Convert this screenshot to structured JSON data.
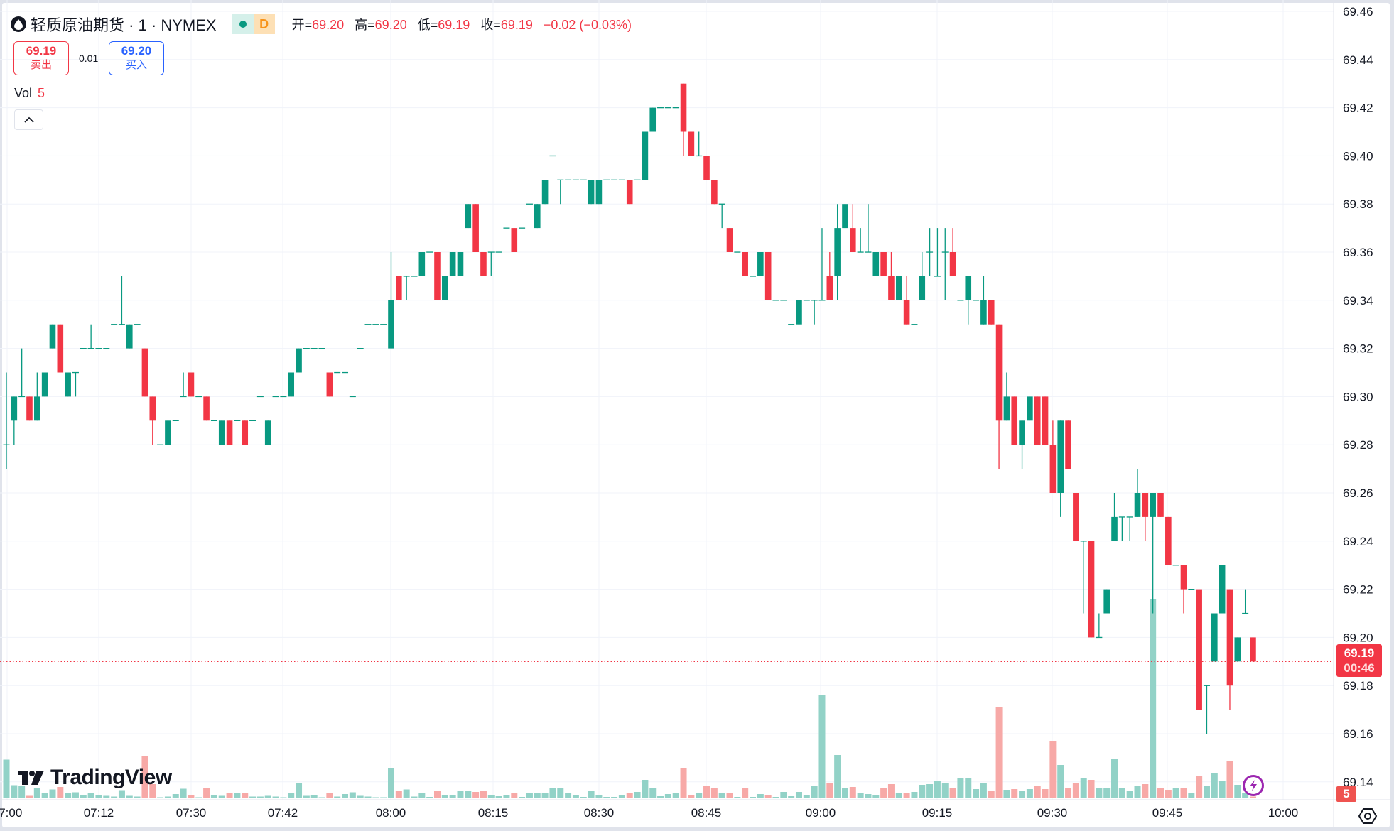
{
  "header": {
    "title": "轻质原油期货 · 1 · NYMEX",
    "status_letter": "D",
    "ohlc": [
      {
        "label": "开=",
        "value": "69.20"
      },
      {
        "label": "高=",
        "value": "69.20"
      },
      {
        "label": "低=",
        "value": "69.19"
      },
      {
        "label": "收=",
        "value": "69.19"
      }
    ],
    "change": "−0.02 (−0.03%)"
  },
  "trade": {
    "sell_price": "69.19",
    "sell_label": "卖出",
    "spread": "0.01",
    "buy_price": "69.20",
    "buy_label": "买入"
  },
  "volume_legend": {
    "label": "Vol",
    "value": "5"
  },
  "branding": {
    "logo_text": "TradingView"
  },
  "colors": {
    "up": "#089981",
    "down": "#f23645",
    "vol_up": "#92d2c7",
    "vol_down": "#f7a9a7",
    "buy": "#2962ff"
  },
  "icons": [
    "droplet-icon",
    "chevron-up-icon",
    "lightning-icon",
    "settings-icon"
  ],
  "chart_data": {
    "type": "candlestick",
    "ylim": [
      69.14,
      69.46
    ],
    "grid": true,
    "y_ticks": [
      "69.46",
      "69.44",
      "69.42",
      "69.40",
      "69.38",
      "69.36",
      "69.34",
      "69.32",
      "69.30",
      "69.28",
      "69.26",
      "69.24",
      "69.22",
      "69.20",
      "69.18",
      "69.16",
      "69.14"
    ],
    "x_ticks": [
      "07:00",
      "07:12",
      "07:30",
      "07:42",
      "08:00",
      "08:15",
      "08:30",
      "08:45",
      "09:00",
      "09:15",
      "09:30",
      "09:45",
      "10:00"
    ],
    "last_price": "69.19",
    "countdown": "00:46",
    "last_volume": "5",
    "ohlc": [
      [
        69.28,
        69.31,
        69.27,
        69.28
      ],
      [
        69.29,
        69.3,
        69.28,
        69.3
      ],
      [
        69.3,
        69.32,
        69.3,
        69.3
      ],
      [
        69.3,
        69.3,
        69.29,
        69.29
      ],
      [
        69.29,
        69.31,
        69.29,
        69.3
      ],
      [
        69.3,
        69.31,
        69.3,
        69.31
      ],
      [
        69.32,
        69.33,
        69.32,
        69.33
      ],
      [
        69.33,
        69.33,
        69.31,
        69.31
      ],
      [
        69.3,
        69.31,
        69.3,
        69.31
      ],
      [
        69.31,
        69.31,
        69.3,
        69.31
      ],
      [
        69.32,
        69.32,
        69.32,
        69.32
      ],
      [
        69.32,
        69.33,
        69.32,
        69.32
      ],
      [
        69.32,
        69.32,
        69.32,
        69.32
      ],
      [
        69.32,
        69.32,
        69.32,
        69.32
      ],
      [
        69.33,
        69.33,
        69.33,
        69.33
      ],
      [
        69.33,
        69.35,
        69.33,
        69.33
      ],
      [
        69.32,
        69.33,
        69.32,
        69.33
      ],
      [
        69.33,
        69.33,
        69.33,
        69.33
      ],
      [
        69.32,
        69.32,
        69.3,
        69.3
      ],
      [
        69.3,
        69.3,
        69.28,
        69.29
      ],
      [
        69.28,
        69.28,
        69.28,
        69.28
      ],
      [
        69.28,
        69.29,
        69.28,
        69.29
      ],
      [
        69.29,
        69.29,
        69.29,
        69.29
      ],
      [
        69.3,
        69.31,
        69.3,
        69.3
      ],
      [
        69.31,
        69.31,
        69.3,
        69.3
      ],
      [
        69.3,
        69.3,
        69.3,
        69.3
      ],
      [
        69.3,
        69.3,
        69.29,
        69.29
      ],
      [
        69.29,
        69.29,
        69.29,
        69.29
      ],
      [
        69.28,
        69.29,
        69.28,
        69.29
      ],
      [
        69.29,
        69.29,
        69.28,
        69.28
      ],
      [
        69.29,
        69.29,
        69.29,
        69.29
      ],
      [
        69.29,
        69.29,
        69.28,
        69.28
      ],
      [
        69.29,
        69.29,
        69.29,
        69.29
      ],
      [
        69.3,
        69.3,
        69.3,
        69.3
      ],
      [
        69.28,
        69.29,
        69.28,
        69.29
      ],
      [
        69.3,
        69.3,
        69.3,
        69.3
      ],
      [
        69.3,
        69.3,
        69.3,
        69.3
      ],
      [
        69.3,
        69.31,
        69.3,
        69.31
      ],
      [
        69.31,
        69.32,
        69.31,
        69.32
      ],
      [
        69.32,
        69.32,
        69.32,
        69.32
      ],
      [
        69.32,
        69.32,
        69.32,
        69.32
      ],
      [
        69.32,
        69.32,
        69.32,
        69.32
      ],
      [
        69.31,
        69.31,
        69.3,
        69.3
      ],
      [
        69.31,
        69.31,
        69.31,
        69.31
      ],
      [
        69.31,
        69.31,
        69.31,
        69.31
      ],
      [
        69.3,
        69.3,
        69.3,
        69.3
      ],
      [
        69.32,
        69.32,
        69.32,
        69.32
      ],
      [
        69.33,
        69.33,
        69.33,
        69.33
      ],
      [
        69.33,
        69.33,
        69.33,
        69.33
      ],
      [
        69.33,
        69.33,
        69.33,
        69.33
      ],
      [
        69.32,
        69.36,
        69.32,
        69.34
      ],
      [
        69.35,
        69.35,
        69.34,
        69.34
      ],
      [
        69.35,
        69.35,
        69.34,
        69.35
      ],
      [
        69.35,
        69.35,
        69.35,
        69.35
      ],
      [
        69.35,
        69.36,
        69.35,
        69.36
      ],
      [
        69.36,
        69.36,
        69.36,
        69.36
      ],
      [
        69.36,
        69.36,
        69.34,
        69.34
      ],
      [
        69.34,
        69.35,
        69.34,
        69.35
      ],
      [
        69.35,
        69.36,
        69.35,
        69.36
      ],
      [
        69.35,
        69.36,
        69.35,
        69.36
      ],
      [
        69.37,
        69.38,
        69.37,
        69.38
      ],
      [
        69.38,
        69.38,
        69.36,
        69.36
      ],
      [
        69.36,
        69.36,
        69.35,
        69.35
      ],
      [
        69.36,
        69.36,
        69.35,
        69.36
      ],
      [
        69.36,
        69.36,
        69.36,
        69.36
      ],
      [
        69.37,
        69.37,
        69.37,
        69.37
      ],
      [
        69.37,
        69.37,
        69.36,
        69.36
      ],
      [
        69.37,
        69.37,
        69.37,
        69.37
      ],
      [
        69.38,
        69.38,
        69.38,
        69.38
      ],
      [
        69.37,
        69.38,
        69.37,
        69.38
      ],
      [
        69.38,
        69.39,
        69.38,
        69.39
      ],
      [
        69.4,
        69.4,
        69.4,
        69.4
      ],
      [
        69.39,
        69.39,
        69.38,
        69.39
      ],
      [
        69.39,
        69.39,
        69.39,
        69.39
      ],
      [
        69.39,
        69.39,
        69.39,
        69.39
      ],
      [
        69.39,
        69.39,
        69.39,
        69.39
      ],
      [
        69.38,
        69.39,
        69.38,
        69.39
      ],
      [
        69.38,
        69.39,
        69.38,
        69.39
      ],
      [
        69.39,
        69.39,
        69.39,
        69.39
      ],
      [
        69.39,
        69.39,
        69.39,
        69.39
      ],
      [
        69.39,
        69.39,
        69.39,
        69.39
      ],
      [
        69.39,
        69.39,
        69.38,
        69.38
      ],
      [
        69.39,
        69.39,
        69.39,
        69.39
      ],
      [
        69.39,
        69.41,
        69.39,
        69.41
      ],
      [
        69.41,
        69.42,
        69.41,
        69.42
      ],
      [
        69.42,
        69.42,
        69.42,
        69.42
      ],
      [
        69.42,
        69.42,
        69.42,
        69.42
      ],
      [
        69.42,
        69.42,
        69.42,
        69.42
      ],
      [
        69.43,
        69.43,
        69.4,
        69.41
      ],
      [
        69.41,
        69.41,
        69.4,
        69.4
      ],
      [
        69.4,
        69.41,
        69.4,
        69.4
      ],
      [
        69.4,
        69.4,
        69.39,
        69.39
      ],
      [
        69.39,
        69.39,
        69.38,
        69.38
      ],
      [
        69.38,
        69.38,
        69.37,
        69.38
      ],
      [
        69.37,
        69.37,
        69.36,
        69.36
      ],
      [
        69.36,
        69.36,
        69.36,
        69.36
      ],
      [
        69.36,
        69.36,
        69.35,
        69.35
      ],
      [
        69.35,
        69.35,
        69.35,
        69.35
      ],
      [
        69.35,
        69.36,
        69.35,
        69.36
      ],
      [
        69.36,
        69.36,
        69.34,
        69.34
      ],
      [
        69.34,
        69.34,
        69.34,
        69.34
      ],
      [
        69.34,
        69.34,
        69.34,
        69.34
      ],
      [
        69.33,
        69.33,
        69.33,
        69.33
      ],
      [
        69.33,
        69.34,
        69.33,
        69.34
      ],
      [
        69.34,
        69.34,
        69.34,
        69.34
      ],
      [
        69.34,
        69.34,
        69.33,
        69.34
      ],
      [
        69.34,
        69.37,
        69.34,
        69.34
      ],
      [
        69.35,
        69.36,
        69.34,
        69.34
      ],
      [
        69.35,
        69.38,
        69.34,
        69.37
      ],
      [
        69.37,
        69.38,
        69.37,
        69.38
      ],
      [
        69.37,
        69.38,
        69.36,
        69.36
      ],
      [
        69.36,
        69.37,
        69.36,
        69.36
      ],
      [
        69.36,
        69.38,
        69.36,
        69.36
      ],
      [
        69.35,
        69.36,
        69.35,
        69.36
      ],
      [
        69.36,
        69.36,
        69.35,
        69.35
      ],
      [
        69.35,
        69.36,
        69.34,
        69.34
      ],
      [
        69.34,
        69.35,
        69.34,
        69.35
      ],
      [
        69.34,
        69.35,
        69.33,
        69.33
      ],
      [
        69.33,
        69.33,
        69.33,
        69.33
      ],
      [
        69.34,
        69.36,
        69.34,
        69.35
      ],
      [
        69.36,
        69.37,
        69.35,
        69.36
      ],
      [
        69.35,
        69.37,
        69.35,
        69.35
      ],
      [
        69.36,
        69.37,
        69.34,
        69.36
      ],
      [
        69.36,
        69.37,
        69.35,
        69.35
      ],
      [
        69.34,
        69.34,
        69.34,
        69.34
      ],
      [
        69.34,
        69.35,
        69.33,
        69.35
      ],
      [
        69.34,
        69.34,
        69.34,
        69.34
      ],
      [
        69.33,
        69.35,
        69.33,
        69.34
      ],
      [
        69.34,
        69.34,
        69.33,
        69.33
      ],
      [
        69.33,
        69.33,
        69.27,
        69.29
      ],
      [
        69.29,
        69.31,
        69.29,
        69.3
      ],
      [
        69.3,
        69.3,
        69.28,
        69.28
      ],
      [
        69.28,
        69.29,
        69.27,
        69.29
      ],
      [
        69.29,
        69.3,
        69.29,
        69.3
      ],
      [
        69.3,
        69.3,
        69.28,
        69.28
      ],
      [
        69.3,
        69.3,
        69.28,
        69.28
      ],
      [
        69.28,
        69.29,
        69.26,
        69.26
      ],
      [
        69.26,
        69.29,
        69.25,
        69.29
      ],
      [
        69.29,
        69.29,
        69.27,
        69.27
      ],
      [
        69.26,
        69.26,
        69.24,
        69.24
      ],
      [
        69.24,
        69.24,
        69.21,
        69.24
      ],
      [
        69.24,
        69.24,
        69.2,
        69.2
      ],
      [
        69.2,
        69.21,
        69.2,
        69.2
      ],
      [
        69.21,
        69.22,
        69.21,
        69.22
      ],
      [
        69.24,
        69.26,
        69.24,
        69.25
      ],
      [
        69.25,
        69.25,
        69.24,
        69.25
      ],
      [
        69.25,
        69.25,
        69.24,
        69.25
      ],
      [
        69.25,
        69.27,
        69.25,
        69.26
      ],
      [
        69.26,
        69.26,
        69.24,
        69.25
      ],
      [
        69.25,
        69.26,
        69.21,
        69.26
      ],
      [
        69.26,
        69.26,
        69.25,
        69.25
      ],
      [
        69.25,
        69.25,
        69.23,
        69.23
      ],
      [
        69.23,
        69.23,
        69.23,
        69.23
      ],
      [
        69.23,
        69.23,
        69.21,
        69.22
      ],
      [
        69.22,
        69.22,
        69.22,
        69.22
      ],
      [
        69.22,
        69.22,
        69.17,
        69.17
      ],
      [
        69.18,
        69.18,
        69.16,
        69.18
      ],
      [
        69.19,
        69.21,
        69.19,
        69.21
      ],
      [
        69.21,
        69.23,
        69.21,
        69.23
      ],
      [
        69.22,
        69.22,
        69.17,
        69.18
      ],
      [
        69.19,
        69.2,
        69.19,
        69.2
      ],
      [
        69.21,
        69.22,
        69.21,
        69.21
      ],
      [
        69.2,
        69.2,
        69.19,
        69.19
      ]
    ],
    "volume": [
      109,
      37,
      35,
      7,
      29,
      15,
      25,
      32,
      15,
      17,
      9,
      15,
      10,
      7,
      5,
      23,
      7,
      5,
      120,
      40,
      3,
      5,
      12,
      27,
      8,
      3,
      29,
      10,
      7,
      15,
      15,
      15,
      5,
      5,
      7,
      5,
      3,
      15,
      42,
      7,
      9,
      3,
      15,
      5,
      12,
      17,
      7,
      5,
      3,
      3,
      85,
      21,
      25,
      5,
      16,
      4,
      22,
      10,
      8,
      20,
      20,
      18,
      20,
      8,
      6,
      10,
      16,
      4,
      16,
      14,
      16,
      30,
      30,
      14,
      8,
      4,
      20,
      10,
      4,
      4,
      10,
      16,
      18,
      52,
      30,
      6,
      12,
      14,
      86,
      8,
      16,
      34,
      30,
      16,
      16,
      4,
      28,
      4,
      12,
      8,
      4,
      18,
      6,
      18,
      10,
      36,
      290,
      42,
      122,
      30,
      32,
      16,
      12,
      10,
      28,
      40,
      16,
      16,
      18,
      38,
      40,
      50,
      44,
      30,
      58,
      56,
      26,
      44,
      20,
      256,
      24,
      26,
      20,
      26,
      36,
      26,
      162,
      94,
      28,
      42,
      56,
      52,
      30,
      30,
      112,
      30,
      20,
      36,
      40,
      560,
      28,
      24,
      30,
      28,
      14,
      64,
      34,
      72,
      48,
      104,
      38,
      16,
      5
    ]
  }
}
